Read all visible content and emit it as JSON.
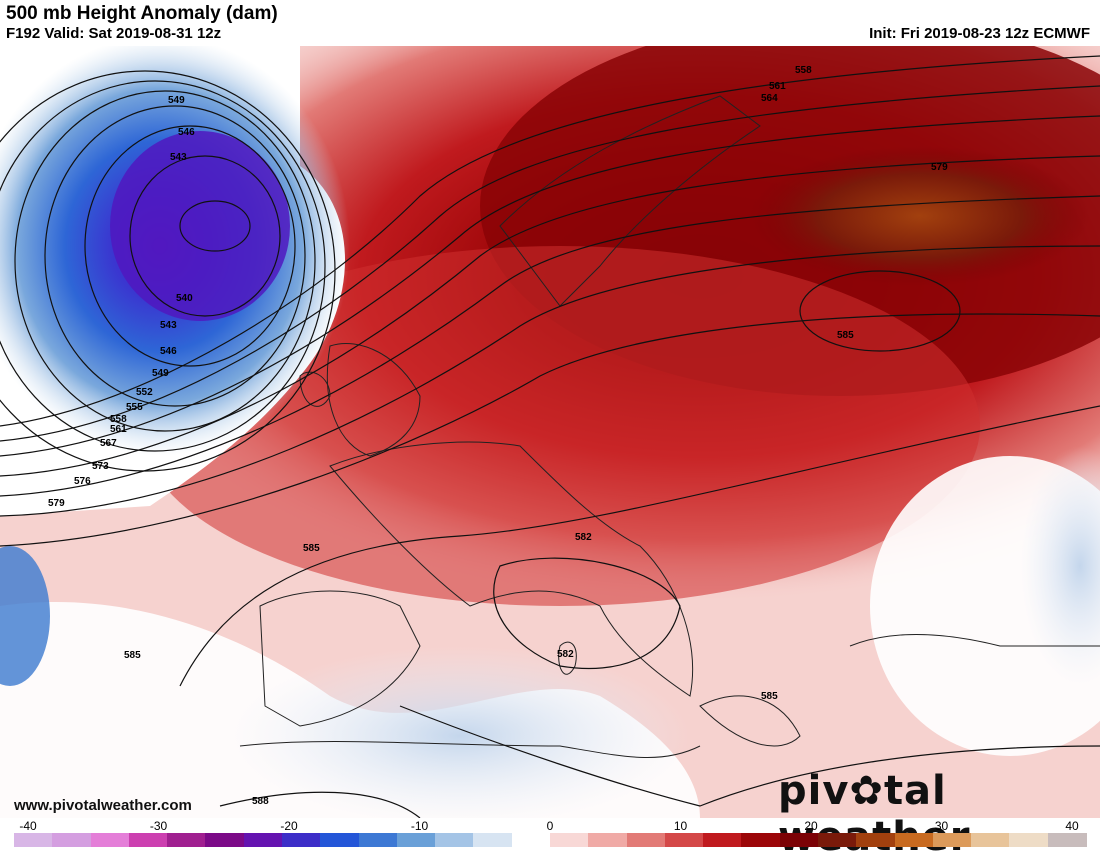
{
  "header": {
    "title": "500 mb Height Anomaly (dam)",
    "valid": "F192 Valid: Sat 2019-08-31 12z",
    "init": "Init: Fri 2019-08-23 12z ECMWF"
  },
  "footer": {
    "website": "www.pivotalweather.com",
    "logo_left": "piv",
    "logo_right": "tal weather"
  },
  "colorbar": {
    "ticks": [
      "-40",
      "-30",
      "-20",
      "-10",
      "0",
      "10",
      "20",
      "30",
      "40"
    ],
    "min": -40,
    "max": 40,
    "colors": [
      "#d8b6e6",
      "#d49ee0",
      "#e47ed8",
      "#cc3fb0",
      "#a01f90",
      "#7c0a88",
      "#6413b0",
      "#3c2ec8",
      "#2456d8",
      "#3d78d4",
      "#6aa0d8",
      "#a4c4e6",
      "#d7e4f2",
      "#ffffff",
      "#f8d8d6",
      "#f0aaa6",
      "#e27a76",
      "#d44848",
      "#c01a1e",
      "#9c0608",
      "#7c0206",
      "#7a1a0a",
      "#a2400e",
      "#c86a20",
      "#dc9a5a",
      "#e8c49a",
      "#eedcc6",
      "#c8bcbc"
    ]
  },
  "contours": {
    "labels": [
      "549",
      "546",
      "543",
      "540",
      "543",
      "546",
      "549",
      "552",
      "555",
      "558",
      "561",
      "564",
      "567",
      "573",
      "576",
      "579",
      "585",
      "585",
      "582",
      "582",
      "585",
      "588",
      "558",
      "561",
      "564",
      "579",
      "585"
    ]
  }
}
